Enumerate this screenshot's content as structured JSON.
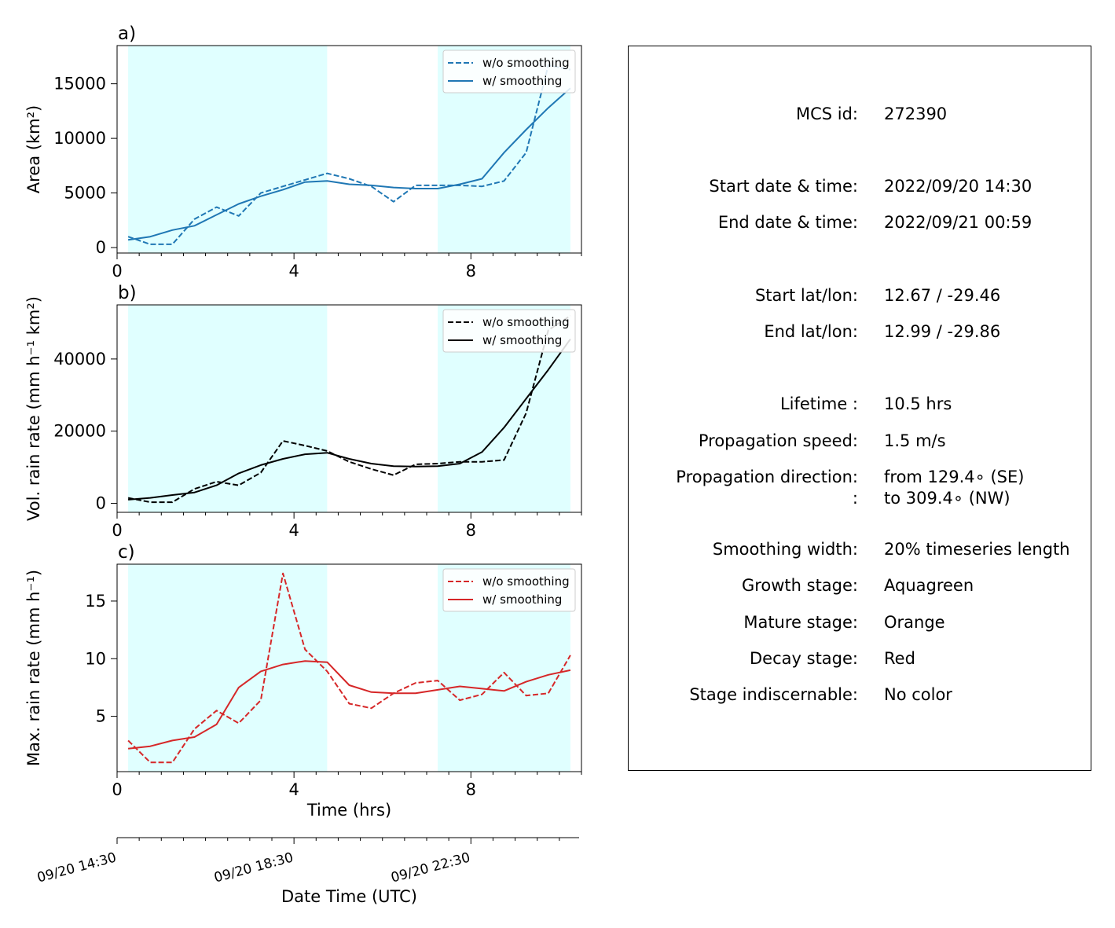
{
  "chart_data": [
    {
      "type": "line",
      "panel_label": "a)",
      "xlabel": "",
      "ylabel": "Area  (km²)",
      "xlim": [
        0,
        10.5
      ],
      "ylim": [
        -500,
        18500
      ],
      "xticks": [
        0,
        4,
        8
      ],
      "yticks": [
        0,
        5000,
        10000,
        15000
      ],
      "shaded_spans": [
        [
          0.25,
          4.75
        ],
        [
          7.25,
          10.25
        ]
      ],
      "shade_color": "#e0ffff",
      "legend_position": "top-right",
      "series": [
        {
          "name": "w/o smoothing",
          "style": "dashed",
          "color": "#1f77b4",
          "x": [
            0.25,
            0.75,
            1.25,
            1.75,
            2.25,
            2.75,
            3.25,
            3.75,
            4.25,
            4.75,
            5.25,
            5.75,
            6.25,
            6.75,
            7.25,
            7.75,
            8.25,
            8.75,
            9.25,
            9.75,
            10.25
          ],
          "y": [
            1000,
            300,
            300,
            2600,
            3700,
            2900,
            5000,
            5600,
            6200,
            6800,
            6300,
            5600,
            4200,
            5700,
            5700,
            5700,
            5600,
            6100,
            8700,
            16700,
            16300
          ]
        },
        {
          "name": "w/ smoothing",
          "style": "solid",
          "color": "#1f77b4",
          "x": [
            0.25,
            0.75,
            1.25,
            1.75,
            2.25,
            2.75,
            3.25,
            3.75,
            4.25,
            4.75,
            5.25,
            5.75,
            6.25,
            6.75,
            7.25,
            7.75,
            8.25,
            8.75,
            9.25,
            9.75,
            10.25
          ],
          "y": [
            700,
            1000,
            1600,
            2000,
            3000,
            4000,
            4700,
            5300,
            6000,
            6100,
            5800,
            5700,
            5500,
            5400,
            5400,
            5800,
            6300,
            8700,
            10800,
            12800,
            14600
          ]
        }
      ]
    },
    {
      "type": "line",
      "panel_label": "b)",
      "xlabel": "",
      "ylabel": "Vol. rain rate (mm h⁻¹ km²)",
      "xlim": [
        0,
        10.5
      ],
      "ylim": [
        -2500,
        55000
      ],
      "xticks": [
        0,
        4,
        8
      ],
      "yticks": [
        0,
        20000,
        40000
      ],
      "shaded_spans": [
        [
          0.25,
          4.75
        ],
        [
          7.25,
          10.25
        ]
      ],
      "shade_color": "#e0ffff",
      "legend_position": "top-right",
      "series": [
        {
          "name": "w/o smoothing",
          "style": "dashed",
          "color": "#000000",
          "x": [
            0.25,
            0.75,
            1.25,
            1.75,
            2.25,
            2.75,
            3.25,
            3.75,
            4.25,
            4.75,
            5.25,
            5.75,
            6.25,
            6.75,
            7.25,
            7.75,
            8.25,
            8.75,
            9.25,
            9.75,
            10.25
          ],
          "y": [
            1500,
            300,
            300,
            4000,
            6000,
            5000,
            8500,
            17300,
            16000,
            14500,
            11500,
            9500,
            7800,
            10800,
            11000,
            11500,
            11500,
            12000,
            25000,
            48000,
            52000
          ]
        },
        {
          "name": "w/ smoothing",
          "style": "solid",
          "color": "#000000",
          "x": [
            0.25,
            0.75,
            1.25,
            1.75,
            2.25,
            2.75,
            3.25,
            3.75,
            4.25,
            4.75,
            5.25,
            5.75,
            6.25,
            6.75,
            7.25,
            7.75,
            8.25,
            8.75,
            9.25,
            9.75,
            10.25
          ],
          "y": [
            1000,
            1500,
            2300,
            3000,
            5000,
            8300,
            10600,
            12300,
            13600,
            14000,
            12300,
            11000,
            10300,
            10200,
            10300,
            11000,
            14200,
            21000,
            29000,
            37000,
            45500
          ]
        }
      ]
    },
    {
      "type": "line",
      "panel_label": "c)",
      "xlabel": "Time (hrs)",
      "ylabel": "Max. rain rate  (mm h⁻¹)",
      "xlim": [
        0,
        10.5
      ],
      "ylim": [
        0.2,
        18.2
      ],
      "xticks": [
        0,
        4,
        8
      ],
      "yticks": [
        5,
        10,
        15
      ],
      "shaded_spans": [
        [
          0.25,
          4.75
        ],
        [
          7.25,
          10.25
        ]
      ],
      "shade_color": "#e0ffff",
      "legend_position": "top-right",
      "series": [
        {
          "name": "w/o smoothing",
          "style": "dashed",
          "color": "#d62728",
          "x": [
            0.25,
            0.75,
            1.25,
            1.75,
            2.25,
            2.75,
            3.25,
            3.75,
            4.25,
            4.75,
            5.25,
            5.75,
            6.25,
            6.75,
            7.25,
            7.75,
            8.25,
            8.75,
            9.25,
            9.75,
            10.25
          ],
          "y": [
            2.9,
            1.0,
            1.0,
            3.9,
            5.5,
            4.4,
            6.4,
            17.4,
            10.8,
            8.9,
            6.1,
            5.7,
            7.0,
            7.9,
            8.1,
            6.4,
            6.9,
            8.8,
            6.8,
            7.0,
            10.3
          ]
        },
        {
          "name": "w/ smoothing",
          "style": "solid",
          "color": "#d62728",
          "x": [
            0.25,
            0.75,
            1.25,
            1.75,
            2.25,
            2.75,
            3.25,
            3.75,
            4.25,
            4.75,
            5.25,
            5.75,
            6.25,
            6.75,
            7.25,
            7.75,
            8.25,
            8.75,
            9.25,
            9.75,
            10.25
          ],
          "y": [
            2.2,
            2.4,
            2.9,
            3.2,
            4.3,
            7.5,
            8.9,
            9.5,
            9.8,
            9.7,
            7.7,
            7.1,
            7.0,
            7.0,
            7.3,
            7.6,
            7.4,
            7.2,
            8.0,
            8.6,
            9.0
          ]
        }
      ]
    }
  ],
  "time_axis": {
    "label": "Date Time (UTC)",
    "ticks": [
      {
        "hours": 0,
        "label": "09/20 14:30"
      },
      {
        "hours": 4,
        "label": "09/20 18:30"
      },
      {
        "hours": 8,
        "label": "09/20 22:30"
      }
    ]
  },
  "info": {
    "mcs_id_label": "MCS id:",
    "mcs_id": "272390",
    "start_time_label": "Start date & time:",
    "start_time": "2022/09/20 14:30",
    "end_time_label": "End date & time:",
    "end_time": "2022/09/21 00:59",
    "start_latlon_label": "Start lat/lon:",
    "start_latlon": "12.67 / -29.46",
    "end_latlon_label": "End lat/lon:",
    "end_latlon": "12.99 / -29.86",
    "lifetime_label": "Lifetime :",
    "lifetime": "10.5 hrs",
    "speed_label": "Propagation speed:",
    "speed": "1.5 m/s",
    "direction_label": "Propagation direction:",
    "direction_from": "from 129.4∘ (SE)",
    "direction_cont_label": ":",
    "direction_to": "to   309.4∘ (NW)",
    "smoothing_label": "Smoothing width:",
    "smoothing": "20% timeseries length",
    "growth_label": "Growth stage:",
    "growth": "Aquagreen",
    "mature_label": "Mature stage:",
    "mature": "Orange",
    "decay_label": "Decay stage:",
    "decay": "Red",
    "indisc_label": "Stage indiscernable:",
    "indisc": "No color"
  }
}
